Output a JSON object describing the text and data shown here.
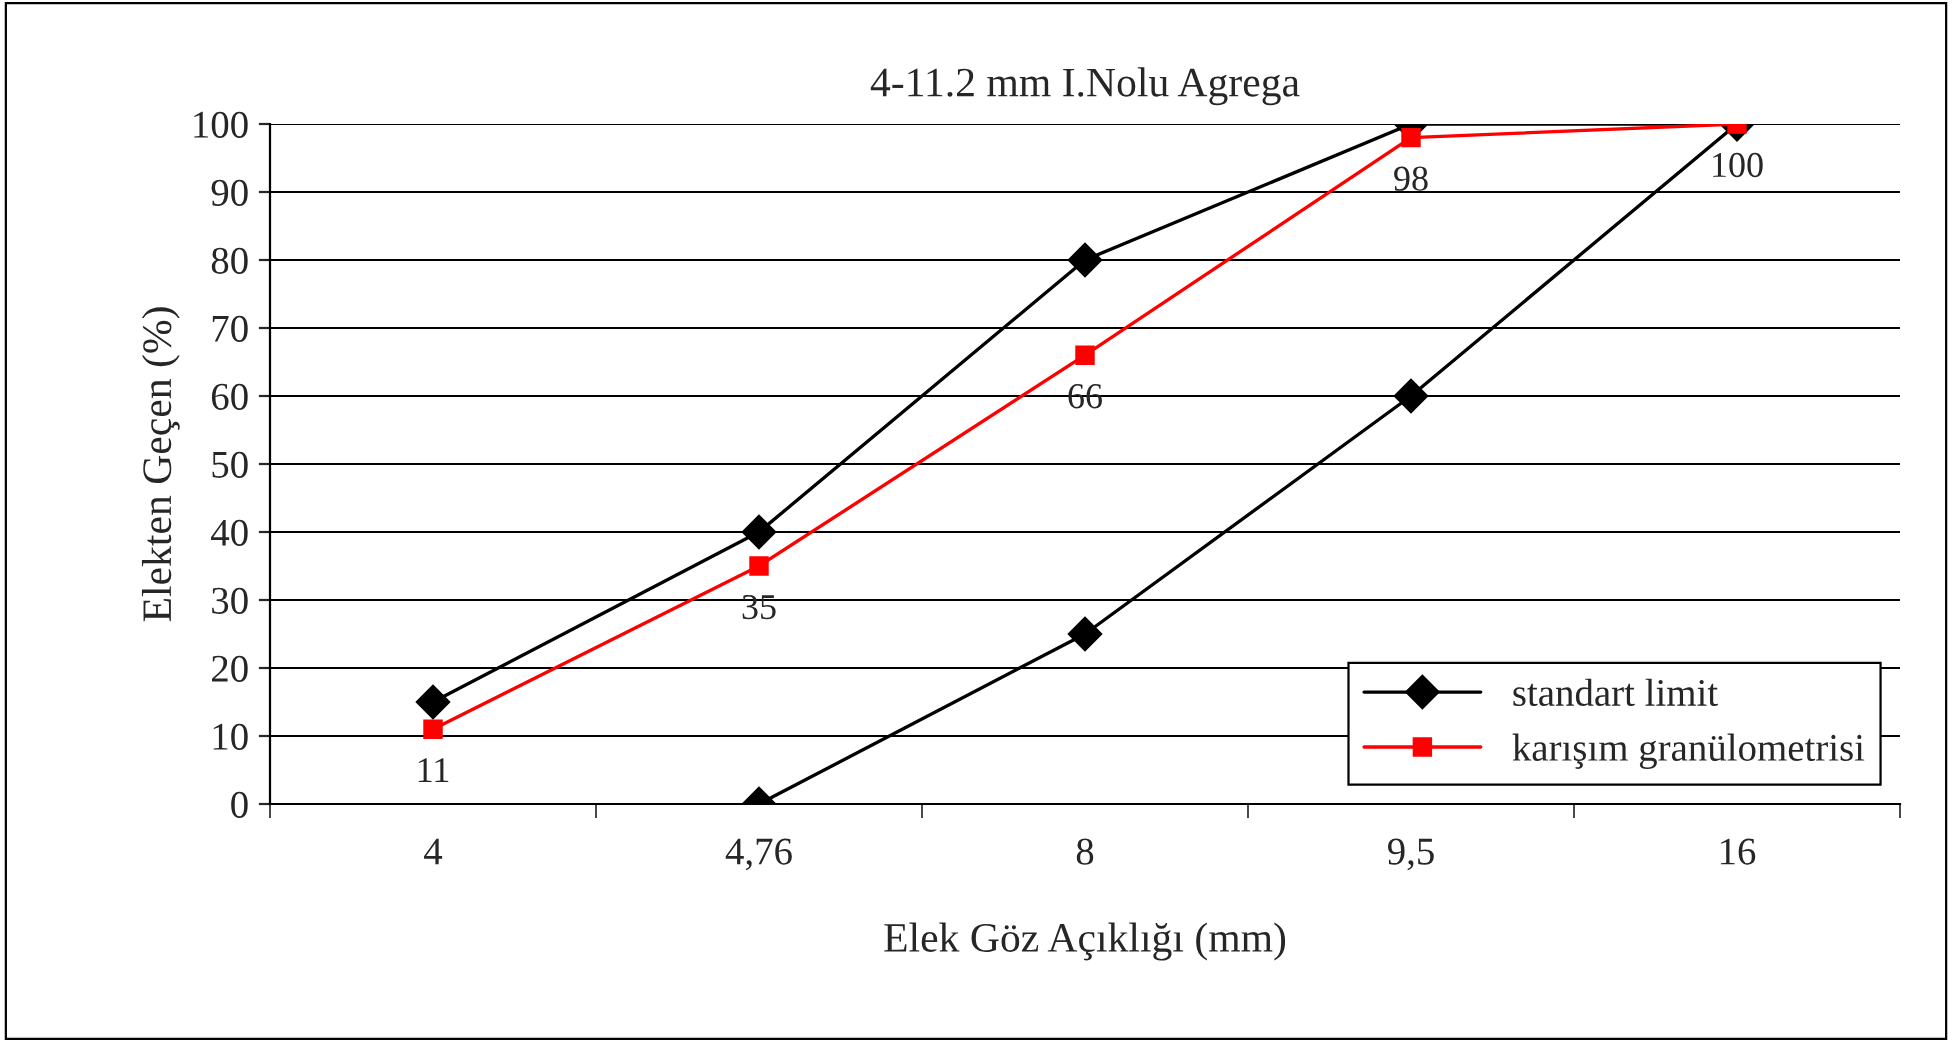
{
  "chart_data": {
    "type": "line",
    "title": "4-11.2 mm I.Nolu Agrega",
    "xlabel": "Elek Göz Açıklığı (mm)",
    "ylabel": "Elekten Geçen (%)",
    "categories": [
      "4",
      "4,76",
      "8",
      "9,5",
      "16"
    ],
    "series": [
      {
        "name": "standart limit",
        "color": "#000000",
        "marker": "diamond",
        "values": [
          15,
          40,
          80,
          100,
          100
        ]
      },
      {
        "color": "#000000",
        "marker": "diamond",
        "values": [
          null,
          0,
          25,
          60,
          100
        ]
      },
      {
        "name": "karışım granülometrisi",
        "color": "#ff0000",
        "marker": "square",
        "values": [
          11,
          35,
          66,
          98,
          100
        ],
        "value_labels": [
          "11",
          "35",
          "66",
          "98",
          "100"
        ]
      }
    ],
    "ylim": [
      0,
      100
    ],
    "yticks": [
      0,
      10,
      20,
      30,
      40,
      50,
      60,
      70,
      80,
      90,
      100
    ],
    "grid": "y",
    "legend": "bottom right",
    "line_style": "solid"
  }
}
